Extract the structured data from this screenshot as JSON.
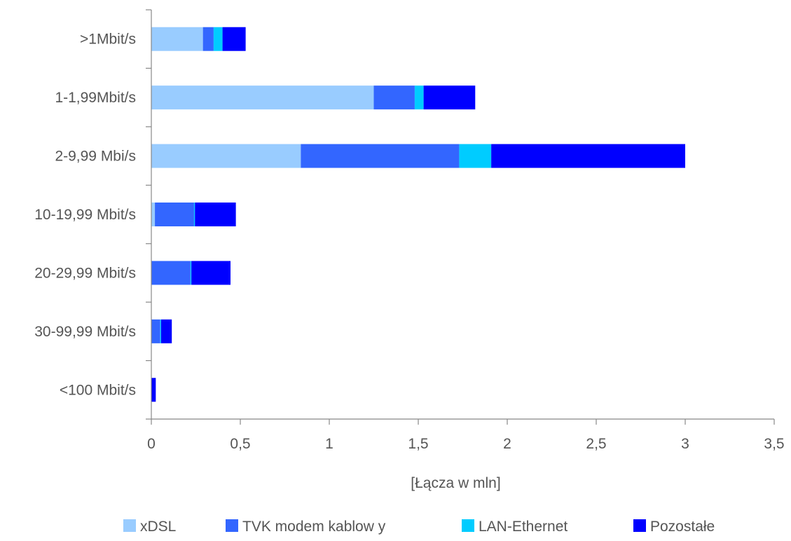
{
  "chart_data": {
    "type": "bar",
    "orientation": "horizontal",
    "stacked": true,
    "categories": [
      ">1Mbit/s",
      "1-1,99Mbit/s",
      "2-9,99 Mbi/s",
      "10-19,99 Mbit/s",
      "20-29,99 Mbit/s",
      "30-99,99 Mbit/s",
      "<100 Mbit/s"
    ],
    "series": [
      {
        "name": "xDSL",
        "color": "#99ccff",
        "values": [
          0.29,
          1.25,
          0.84,
          0.02,
          0.0,
          0.0,
          0.0
        ]
      },
      {
        "name": "TVK modem kablow y",
        "color": "#3366ff",
        "values": [
          0.06,
          0.23,
          0.89,
          0.22,
          0.22,
          0.05,
          0.0
        ]
      },
      {
        "name": "LAN-Ethernet",
        "color": "#00ccff",
        "values": [
          0.05,
          0.05,
          0.18,
          0.005,
          0.005,
          0.005,
          0.0
        ]
      },
      {
        "name": "Pozostałe",
        "color": "#0000ff",
        "values": [
          0.13,
          0.29,
          1.09,
          0.23,
          0.22,
          0.06,
          0.025
        ]
      }
    ],
    "xlabel": "[Łącza w  mln]",
    "ylabel": "",
    "title": "",
    "xlim": [
      0,
      3.5
    ],
    "xticks": [
      0,
      0.5,
      1,
      1.5,
      2,
      2.5,
      3,
      3.5
    ],
    "xtick_labels": [
      "0",
      "0,5",
      "1",
      "1,5",
      "2",
      "2,5",
      "3",
      "3,5"
    ],
    "grid": false,
    "legend_position": "bottom"
  }
}
